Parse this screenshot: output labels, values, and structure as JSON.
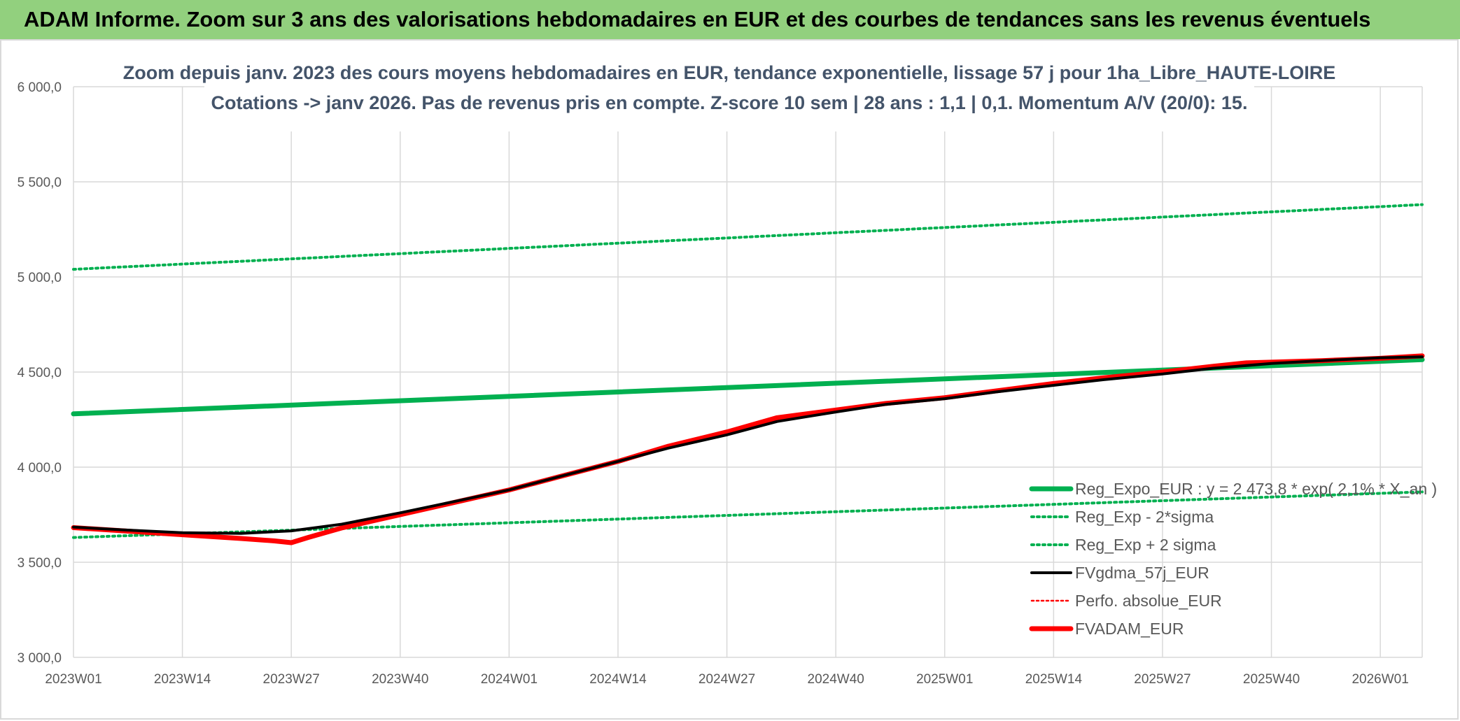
{
  "banner": {
    "text": "ADAM Informe. Zoom sur 3 ans des valorisations hebdomadaires en EUR et des courbes de tendances sans les revenus éventuels",
    "background": "#92d07e"
  },
  "chart_data": {
    "type": "line",
    "title": "Zoom depuis janv. 2023 des cours moyens hebdomadaires en EUR, tendance exponentielle, lissage 57 j pour 1ha_Libre_HAUTE-LOIRE",
    "subtitle": "Cotations -> janv 2026. Pas de revenus pris en compte. Z-score 10 sem | 28 ans : 1,1 | 0,1. Momentum A/V (20/0): 15.",
    "xlabel": "",
    "ylabel": "",
    "ylim": [
      3000,
      6000
    ],
    "yticks": [
      "3 000,0",
      "3 500,0",
      "4 000,0",
      "4 500,0",
      "5 000,0",
      "5 500,0",
      "6 000,0"
    ],
    "xticks": [
      "2023W01",
      "2023W14",
      "2023W27",
      "2023W40",
      "2024W01",
      "2024W14",
      "2024W27",
      "2024W40",
      "2025W01",
      "2025W14",
      "2025W27",
      "2025W40",
      "2026W01"
    ],
    "x_range_weeks": [
      0,
      161
    ],
    "grid": true,
    "legend_position": "right",
    "series": [
      {
        "name": "Reg_Expo_EUR : y = 2 473,8 * exp( 2,1% * X_an )",
        "color": "#00b050",
        "style": "solid",
        "weight": "thick",
        "points": [
          [
            0,
            4280
          ],
          [
            161,
            4565
          ]
        ]
      },
      {
        "name": "Reg_Exp - 2*sigma",
        "color": "#00b050",
        "style": "dotted",
        "weight": "medium",
        "points": [
          [
            0,
            3630
          ],
          [
            161,
            3870
          ]
        ]
      },
      {
        "name": "Reg_Exp + 2 sigma",
        "color": "#00b050",
        "style": "dotted",
        "weight": "medium",
        "points": [
          [
            0,
            5040
          ],
          [
            161,
            5380
          ]
        ]
      },
      {
        "name": "FVgdma_57j_EUR",
        "color": "#000000",
        "style": "solid",
        "weight": "medium",
        "points": [
          [
            0,
            3685
          ],
          [
            6,
            3670
          ],
          [
            13,
            3655
          ],
          [
            20,
            3652
          ],
          [
            26,
            3665
          ],
          [
            32,
            3700
          ],
          [
            39,
            3760
          ],
          [
            45,
            3815
          ],
          [
            52,
            3880
          ],
          [
            58,
            3950
          ],
          [
            65,
            4030
          ],
          [
            71,
            4100
          ],
          [
            78,
            4170
          ],
          [
            84,
            4240
          ],
          [
            91,
            4290
          ],
          [
            97,
            4330
          ],
          [
            104,
            4360
          ],
          [
            110,
            4395
          ],
          [
            117,
            4430
          ],
          [
            123,
            4460
          ],
          [
            130,
            4490
          ],
          [
            136,
            4520
          ],
          [
            143,
            4545
          ],
          [
            149,
            4560
          ],
          [
            156,
            4575
          ],
          [
            161,
            4580
          ]
        ]
      },
      {
        "name": "Perfo. absolue_EUR",
        "color": "#ff0000",
        "style": "dotted",
        "weight": "thin",
        "points": []
      },
      {
        "name": "FVADAM_EUR",
        "color": "#ff0000",
        "style": "solid",
        "weight": "thick",
        "points": [
          [
            0,
            3682
          ],
          [
            6,
            3665
          ],
          [
            13,
            3645
          ],
          [
            20,
            3625
          ],
          [
            24,
            3612
          ],
          [
            26,
            3603
          ],
          [
            28,
            3630
          ],
          [
            32,
            3680
          ],
          [
            39,
            3750
          ],
          [
            45,
            3810
          ],
          [
            52,
            3880
          ],
          [
            58,
            3950
          ],
          [
            65,
            4030
          ],
          [
            71,
            4110
          ],
          [
            78,
            4185
          ],
          [
            84,
            4260
          ],
          [
            91,
            4300
          ],
          [
            97,
            4335
          ],
          [
            104,
            4365
          ],
          [
            110,
            4400
          ],
          [
            117,
            4440
          ],
          [
            123,
            4470
          ],
          [
            130,
            4500
          ],
          [
            136,
            4530
          ],
          [
            140,
            4548
          ],
          [
            143,
            4552
          ],
          [
            149,
            4560
          ],
          [
            156,
            4572
          ],
          [
            161,
            4585
          ]
        ]
      }
    ]
  }
}
